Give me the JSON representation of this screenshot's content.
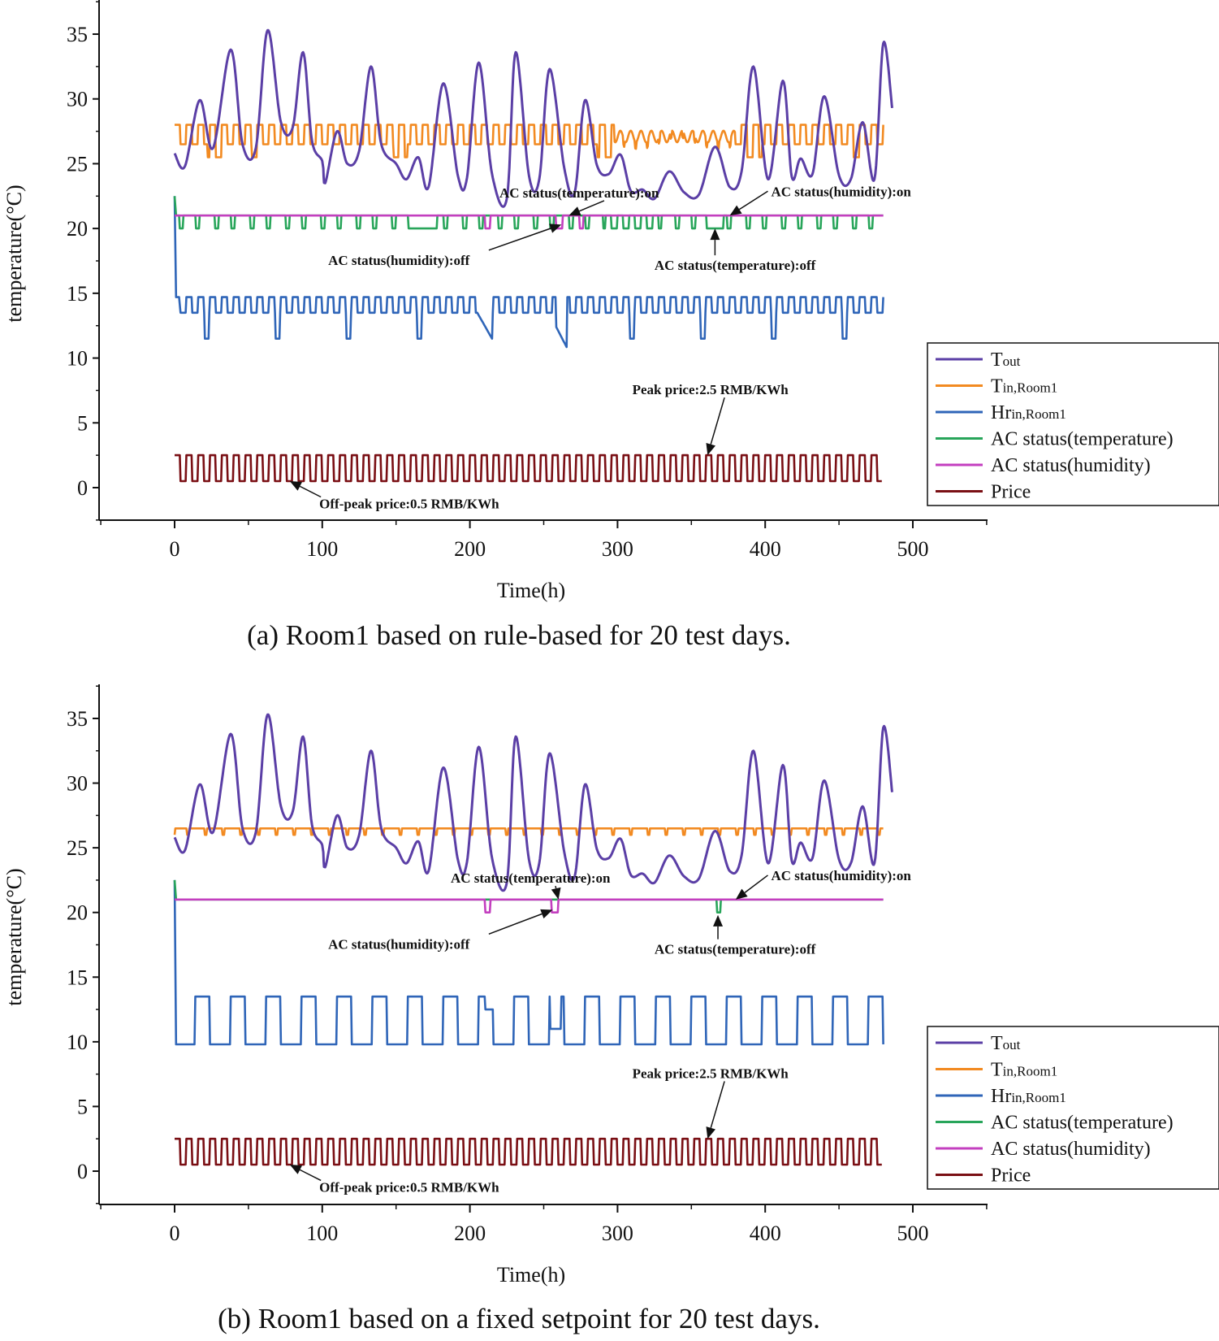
{
  "colors": {
    "Tout": "#5b3fa6",
    "Tin": "#f28a21",
    "Hr": "#2f65b8",
    "ACtemp": "#28a55a",
    "AChum": "#c33fbf",
    "Price": "#7a0f14"
  },
  "chart_data": [
    {
      "type": "line",
      "caption": "(a)  Room1 based on rule-based for 20 test days.",
      "xlabel": "Time(h)",
      "ylabel": "temperature(°C)",
      "xlim": [
        -50,
        550
      ],
      "ylim": [
        -2.5,
        37.5
      ],
      "xticks": [
        0,
        100,
        200,
        300,
        400,
        500
      ],
      "yticks": [
        0,
        5,
        10,
        15,
        20,
        25,
        30,
        35
      ],
      "legend_placement": "right",
      "legend": [
        {
          "key": "Tout",
          "main": "T",
          "sub": "out"
        },
        {
          "key": "Tin",
          "main": "T",
          "sub": "in,Room1"
        },
        {
          "key": "Hr",
          "main": "Hr",
          "sub": "in,Room1"
        },
        {
          "key": "ACtemp",
          "main": "AC status(temperature)",
          "sub": ""
        },
        {
          "key": "AChum",
          "main": "AC status(humidity)",
          "sub": ""
        },
        {
          "key": "Price",
          "main": "Price",
          "sub": ""
        }
      ],
      "annotations": [
        {
          "text": "AC status(temperature):on",
          "tx": 220,
          "ty": 22.4,
          "anchor": "start",
          "ax": 267,
          "ay": 21.0
        },
        {
          "text": "AC status(humidity):on",
          "tx": 404,
          "ty": 22.5,
          "anchor": "start",
          "ax": 376,
          "ay": 21.0
        },
        {
          "text": "AC status(humidity):off",
          "tx": 104,
          "ty": 17.2,
          "anchor": "start",
          "ax": 262,
          "ay": 20.3
        },
        {
          "text": "AC status(temperature):off",
          "tx": 325,
          "ty": 16.8,
          "anchor": "start",
          "ax": 366,
          "ay": 20.0
        },
        {
          "text": "Peak price:2.5 RMB/KWh",
          "tx": 310,
          "ty": 7.2,
          "anchor": "start",
          "ax": 361,
          "ay": 2.5
        },
        {
          "text": "Off-peak price:0.5 RMB/KWh",
          "tx": 98,
          "ty": -1.6,
          "anchor": "start",
          "ax": 78,
          "ay": 0.5
        }
      ],
      "series": [
        {
          "key": "Tout",
          "model": "tout",
          "points": [
            [
              0,
              25.8
            ],
            [
              7,
              24.8
            ],
            [
              17,
              29.9
            ],
            [
              26,
              26.2
            ],
            [
              38,
              33.8
            ],
            [
              46,
              26.5
            ],
            [
              55,
              26.2
            ],
            [
              63,
              35.3
            ],
            [
              72,
              28.2
            ],
            [
              80,
              27.8
            ],
            [
              87,
              33.6
            ],
            [
              93,
              26.8
            ],
            [
              100,
              25.2
            ],
            [
              102,
              23.5
            ],
            [
              110,
              27.5
            ],
            [
              117,
              25.0
            ],
            [
              125,
              26.0
            ],
            [
              133,
              32.5
            ],
            [
              140,
              26.5
            ],
            [
              150,
              25.0
            ],
            [
              157,
              23.8
            ],
            [
              165,
              25.5
            ],
            [
              172,
              23.2
            ],
            [
              182,
              31.2
            ],
            [
              192,
              24.0
            ],
            [
              198,
              23.9
            ],
            [
              206,
              32.8
            ],
            [
              215,
              24.2
            ],
            [
              225,
              22.3
            ],
            [
              231,
              33.6
            ],
            [
              240,
              24.1
            ],
            [
              247,
              23.8
            ],
            [
              254,
              32.3
            ],
            [
              264,
              24.6
            ],
            [
              271,
              22.8
            ],
            [
              278,
              29.9
            ],
            [
              286,
              24.9
            ],
            [
              294,
              24.2
            ],
            [
              302,
              25.7
            ],
            [
              309,
              22.9
            ],
            [
              317,
              23.0
            ],
            [
              325,
              22.3
            ],
            [
              335,
              24.4
            ],
            [
              345,
              22.8
            ],
            [
              355,
              22.6
            ],
            [
              366,
              26.3
            ],
            [
              376,
              23.2
            ],
            [
              384,
              24.4
            ],
            [
              392,
              32.5
            ],
            [
              402,
              23.8
            ],
            [
              412,
              31.4
            ],
            [
              418,
              24.0
            ],
            [
              424,
              25.4
            ],
            [
              432,
              24.2
            ],
            [
              440,
              30.2
            ],
            [
              450,
              24.1
            ],
            [
              458,
              23.8
            ],
            [
              466,
              28.2
            ],
            [
              474,
              23.8
            ],
            [
              480,
              34.3
            ],
            [
              486,
              29.3
            ]
          ]
        },
        {
          "key": "Tin",
          "model": "tin_a"
        },
        {
          "key": "Hr",
          "model": "hr_a"
        },
        {
          "key": "ACtemp",
          "model": "actemp_a"
        },
        {
          "key": "AChum",
          "model": "achum_a"
        },
        {
          "key": "Price",
          "model": "price",
          "peak": 2.5,
          "offpeak": 0.5
        }
      ]
    },
    {
      "type": "line",
      "caption": "(b)  Room1 based on a fixed setpoint for 20 test days.",
      "xlabel": "Time(h)",
      "ylabel": "temperature(°C)",
      "xlim": [
        -50,
        550
      ],
      "ylim": [
        -2.5,
        37.5
      ],
      "xticks": [
        0,
        100,
        200,
        300,
        400,
        500
      ],
      "yticks": [
        0,
        5,
        10,
        15,
        20,
        25,
        30,
        35
      ],
      "legend_placement": "right",
      "legend": [
        {
          "key": "Tout",
          "main": "T",
          "sub": "out"
        },
        {
          "key": "Tin",
          "main": "T",
          "sub": "in,Room1"
        },
        {
          "key": "Hr",
          "main": "Hr",
          "sub": "in,Room1"
        },
        {
          "key": "ACtemp",
          "main": "AC status(temperature)",
          "sub": ""
        },
        {
          "key": "AChum",
          "main": "AC status(humidity)",
          "sub": ""
        },
        {
          "key": "Price",
          "main": "Price",
          "sub": ""
        }
      ],
      "annotations": [
        {
          "text": "AC status(temperature):on",
          "tx": 187,
          "ty": 22.3,
          "anchor": "start",
          "ax": 260,
          "ay": 21.0
        },
        {
          "text": "AC status(humidity):on",
          "tx": 404,
          "ty": 22.5,
          "anchor": "start",
          "ax": 380,
          "ay": 21.0
        },
        {
          "text": "AC status(humidity):off",
          "tx": 104,
          "ty": 17.2,
          "anchor": "start",
          "ax": 256,
          "ay": 20.2
        },
        {
          "text": "AC status(temperature):off",
          "tx": 325,
          "ty": 16.8,
          "anchor": "start",
          "ax": 368,
          "ay": 19.8
        },
        {
          "text": "Peak price:2.5 RMB/KWh",
          "tx": 310,
          "ty": 7.2,
          "anchor": "start",
          "ax": 361,
          "ay": 2.5
        },
        {
          "text": "Off-peak price:0.5 RMB/KWh",
          "tx": 98,
          "ty": -1.6,
          "anchor": "start",
          "ax": 78,
          "ay": 0.5
        }
      ],
      "series": [
        {
          "key": "Tout",
          "model": "tout",
          "points": [
            [
              0,
              25.8
            ],
            [
              7,
              24.8
            ],
            [
              17,
              29.9
            ],
            [
              26,
              26.2
            ],
            [
              38,
              33.8
            ],
            [
              46,
              26.5
            ],
            [
              55,
              26.2
            ],
            [
              63,
              35.3
            ],
            [
              72,
              28.2
            ],
            [
              80,
              27.8
            ],
            [
              87,
              33.6
            ],
            [
              93,
              26.8
            ],
            [
              100,
              25.2
            ],
            [
              102,
              23.5
            ],
            [
              110,
              27.5
            ],
            [
              117,
              25.0
            ],
            [
              125,
              26.0
            ],
            [
              133,
              32.5
            ],
            [
              140,
              26.5
            ],
            [
              150,
              25.0
            ],
            [
              157,
              23.8
            ],
            [
              165,
              25.5
            ],
            [
              172,
              23.2
            ],
            [
              182,
              31.2
            ],
            [
              192,
              24.0
            ],
            [
              198,
              23.9
            ],
            [
              206,
              32.8
            ],
            [
              215,
              24.2
            ],
            [
              225,
              22.3
            ],
            [
              231,
              33.6
            ],
            [
              240,
              24.1
            ],
            [
              247,
              23.8
            ],
            [
              254,
              32.3
            ],
            [
              264,
              24.6
            ],
            [
              271,
              22.8
            ],
            [
              278,
              29.9
            ],
            [
              286,
              24.9
            ],
            [
              294,
              24.2
            ],
            [
              302,
              25.7
            ],
            [
              309,
              22.9
            ],
            [
              317,
              23.0
            ],
            [
              325,
              22.3
            ],
            [
              335,
              24.4
            ],
            [
              345,
              22.8
            ],
            [
              355,
              22.6
            ],
            [
              366,
              26.3
            ],
            [
              376,
              23.2
            ],
            [
              384,
              24.4
            ],
            [
              392,
              32.5
            ],
            [
              402,
              23.8
            ],
            [
              412,
              31.4
            ],
            [
              418,
              24.0
            ],
            [
              424,
              25.4
            ],
            [
              432,
              24.2
            ],
            [
              440,
              30.2
            ],
            [
              450,
              24.1
            ],
            [
              458,
              23.8
            ],
            [
              466,
              28.2
            ],
            [
              474,
              23.8
            ],
            [
              480,
              34.3
            ],
            [
              486,
              29.3
            ]
          ]
        },
        {
          "key": "Tin",
          "model": "tin_b"
        },
        {
          "key": "Hr",
          "model": "hr_b"
        },
        {
          "key": "ACtemp",
          "model": "actemp_b"
        },
        {
          "key": "AChum",
          "model": "achum_b"
        },
        {
          "key": "Price",
          "model": "price",
          "peak": 2.5,
          "offpeak": 0.5
        }
      ]
    }
  ]
}
